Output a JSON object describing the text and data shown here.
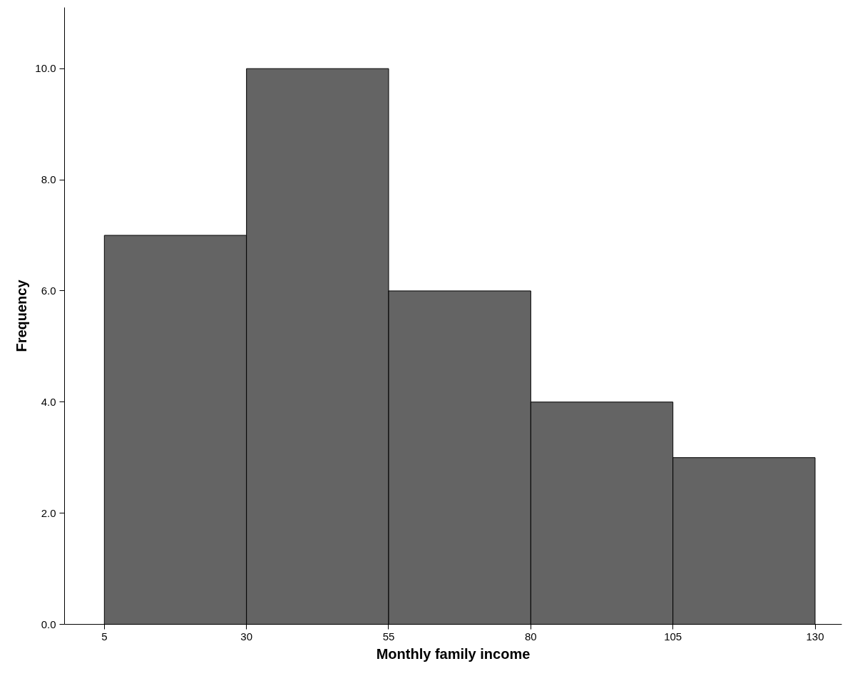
{
  "chart_data": {
    "type": "histogram",
    "xlabel": "Monthly family income",
    "ylabel": "Frequency",
    "bins": [
      5,
      30,
      55,
      80,
      105,
      130
    ],
    "values": [
      7,
      10,
      6,
      4,
      3
    ],
    "color": "#646464",
    "xlim": [
      -2,
      134.7
    ],
    "ylim": [
      0,
      11.1
    ],
    "xticks": [
      5,
      30,
      55,
      80,
      105,
      130
    ],
    "yticks": [
      {
        "value": 0,
        "label": "0.0"
      },
      {
        "value": 2,
        "label": "2.0"
      },
      {
        "value": 4,
        "label": "4.0"
      },
      {
        "value": 6,
        "label": "6.0"
      },
      {
        "value": 8,
        "label": "8.0"
      },
      {
        "value": 10,
        "label": "10.0"
      }
    ],
    "grid": false
  }
}
